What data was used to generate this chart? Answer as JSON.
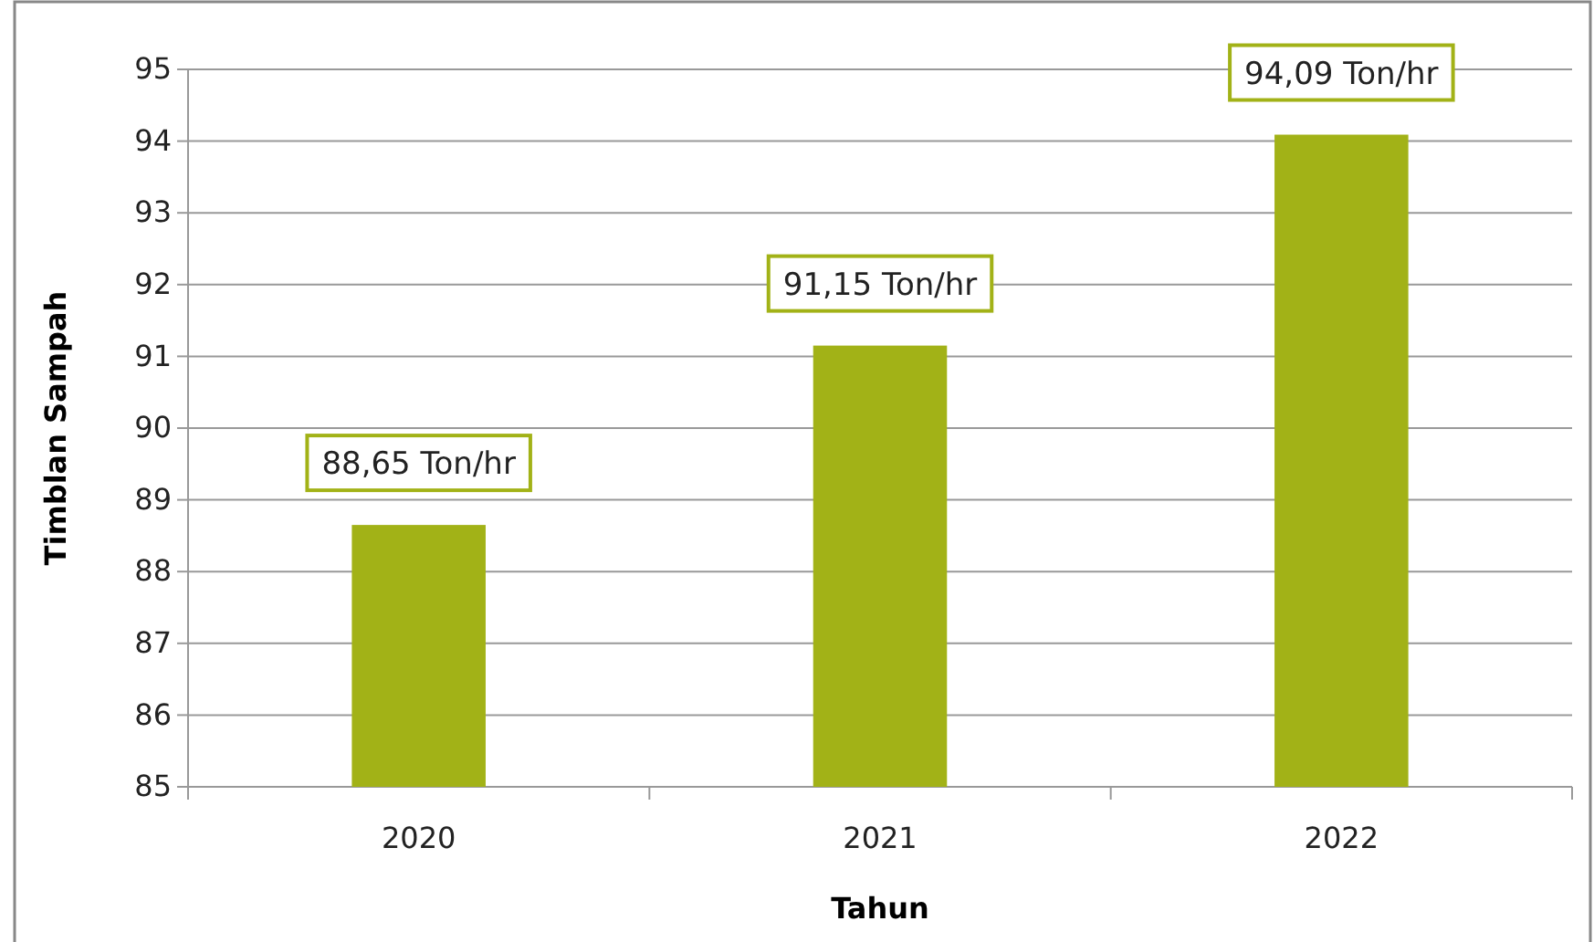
{
  "chart_data": {
    "type": "bar",
    "xlabel": "Tahun",
    "ylabel": "Timblan Sampah",
    "categories": [
      "2020",
      "2021",
      "2022"
    ],
    "values": [
      88.65,
      91.15,
      94.09
    ],
    "value_labels": [
      "88,65 Ton/hr",
      "91,15 Ton/hr",
      "94,09 Ton/hr"
    ],
    "color": "#a2b217",
    "ylim": [
      85,
      95
    ],
    "yticks": [
      85,
      86,
      87,
      88,
      89,
      90,
      91,
      92,
      93,
      94,
      95
    ],
    "grid": "y"
  }
}
